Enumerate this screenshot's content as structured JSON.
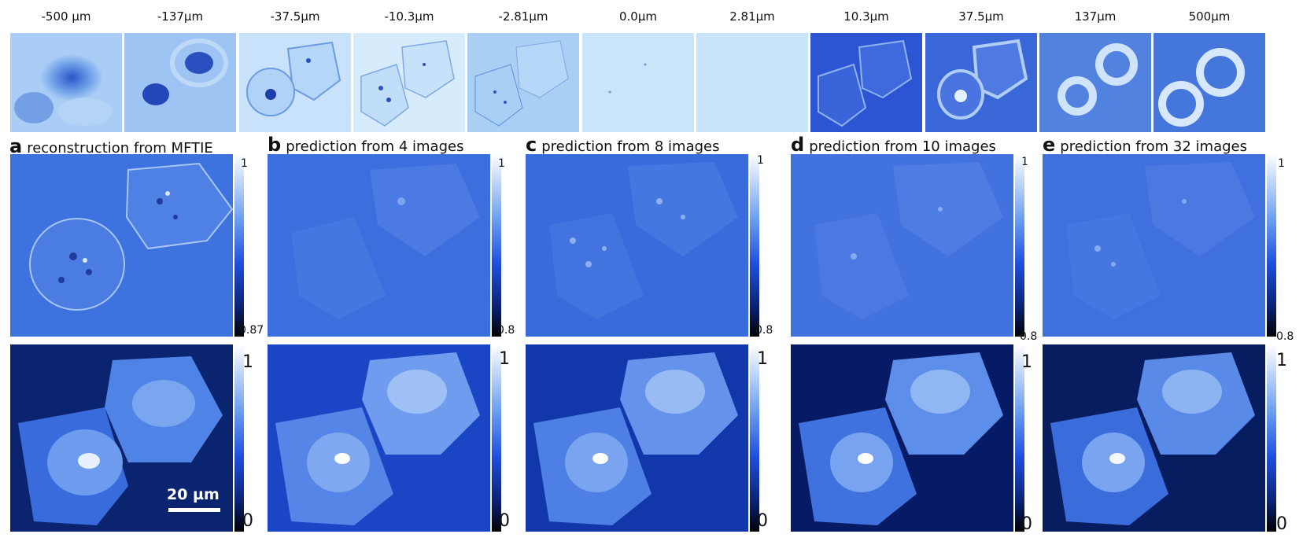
{
  "defocus_row": {
    "labels": [
      "-500 µm",
      "-137µm",
      "-37.5µm",
      "-10.3µm",
      "-2.81µm",
      "0.0µm",
      "2.81µm",
      "10.3µm",
      "37.5µm",
      "137µm",
      "500µm"
    ]
  },
  "panels": [
    {
      "letter": "a",
      "title": "reconstruction from MFTIE",
      "phase_cbar_max": "1",
      "phase_cbar_min": "0.87",
      "fluor_cbar_max": "1",
      "fluor_cbar_min": "0"
    },
    {
      "letter": "b",
      "title": "prediction from 4 images",
      "phase_cbar_max": "1",
      "phase_cbar_min": "0.8",
      "fluor_cbar_max": "1",
      "fluor_cbar_min": "0"
    },
    {
      "letter": "c",
      "title": "prediction from 8 images",
      "phase_cbar_max": "1",
      "phase_cbar_min": "0.8",
      "fluor_cbar_max": "1",
      "fluor_cbar_min": "0"
    },
    {
      "letter": "d",
      "title": "prediction from 10 images",
      "phase_cbar_max": "1",
      "phase_cbar_min": "0.8",
      "fluor_cbar_max": "1",
      "fluor_cbar_min": "0"
    },
    {
      "letter": "e",
      "title": "prediction from 32 images",
      "phase_cbar_max": "1",
      "phase_cbar_min": "0.8",
      "fluor_cbar_max": "1",
      "fluor_cbar_min": "0"
    }
  ],
  "scale_bar": {
    "label": "20 µm"
  }
}
